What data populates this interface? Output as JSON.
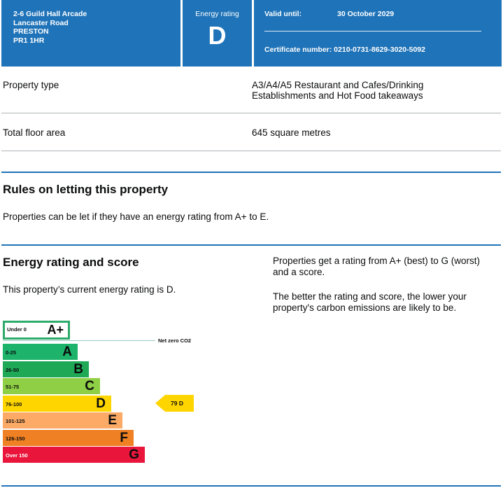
{
  "header": {
    "address": [
      "2-6 Guild Hall Arcade",
      "Lancaster Road",
      "PRESTON",
      "PR1 1HR"
    ],
    "energy_rating_label": "Energy rating",
    "energy_rating": "D",
    "valid_until_label": "Valid until:",
    "valid_until": "30 October 2029",
    "certificate_number": "Certificate number: 0210-0731-8629-3020-5092"
  },
  "summary": {
    "property_type_label": "Property type",
    "property_type_line1": "A3/A4/A5 Restaurant and Cafes/Drinking",
    "property_type_line2": "Establishments and Hot Food takeaways",
    "floor_area_label": "Total floor area",
    "floor_area": "645 square metres"
  },
  "rules": {
    "heading": "Rules on letting this property",
    "text": "Properties can be let if they have an energy rating from A+ to E."
  },
  "energy": {
    "heading": "Energy rating and score",
    "current_text": "This property’s current energy rating is D.",
    "side_text_1": "Properties get a rating from A+ (best) to G (worst) and a score.",
    "side_text_2": "The better the rating and score, the lower your property's carbon emissions are likely to be."
  },
  "chart_data": {
    "type": "bar",
    "aplus": {
      "range": "Under 0",
      "letter": "A+",
      "color": "#2eaa6a"
    },
    "net_zero_label": "Net zero CO2",
    "bands": [
      {
        "range": "0-25",
        "letter": "A",
        "color": "#1db36b",
        "width": 107
      },
      {
        "range": "26-50",
        "letter": "B",
        "color": "#1fa957",
        "width": 123
      },
      {
        "range": "51-75",
        "letter": "C",
        "color": "#8fcf45",
        "width": 139
      },
      {
        "range": "76-100",
        "letter": "D",
        "color": "#ffd500",
        "width": 155
      },
      {
        "range": "101-125",
        "letter": "E",
        "color": "#fcaa65",
        "width": 171
      },
      {
        "range": "126-150",
        "letter": "F",
        "color": "#ef8023",
        "width": 187
      },
      {
        "range": "Over 150",
        "letter": "G",
        "color": "#e9153b",
        "width": 203
      }
    ],
    "current": {
      "score": 79,
      "rating": "D",
      "label": "79  D",
      "color": "#ffd500"
    }
  }
}
